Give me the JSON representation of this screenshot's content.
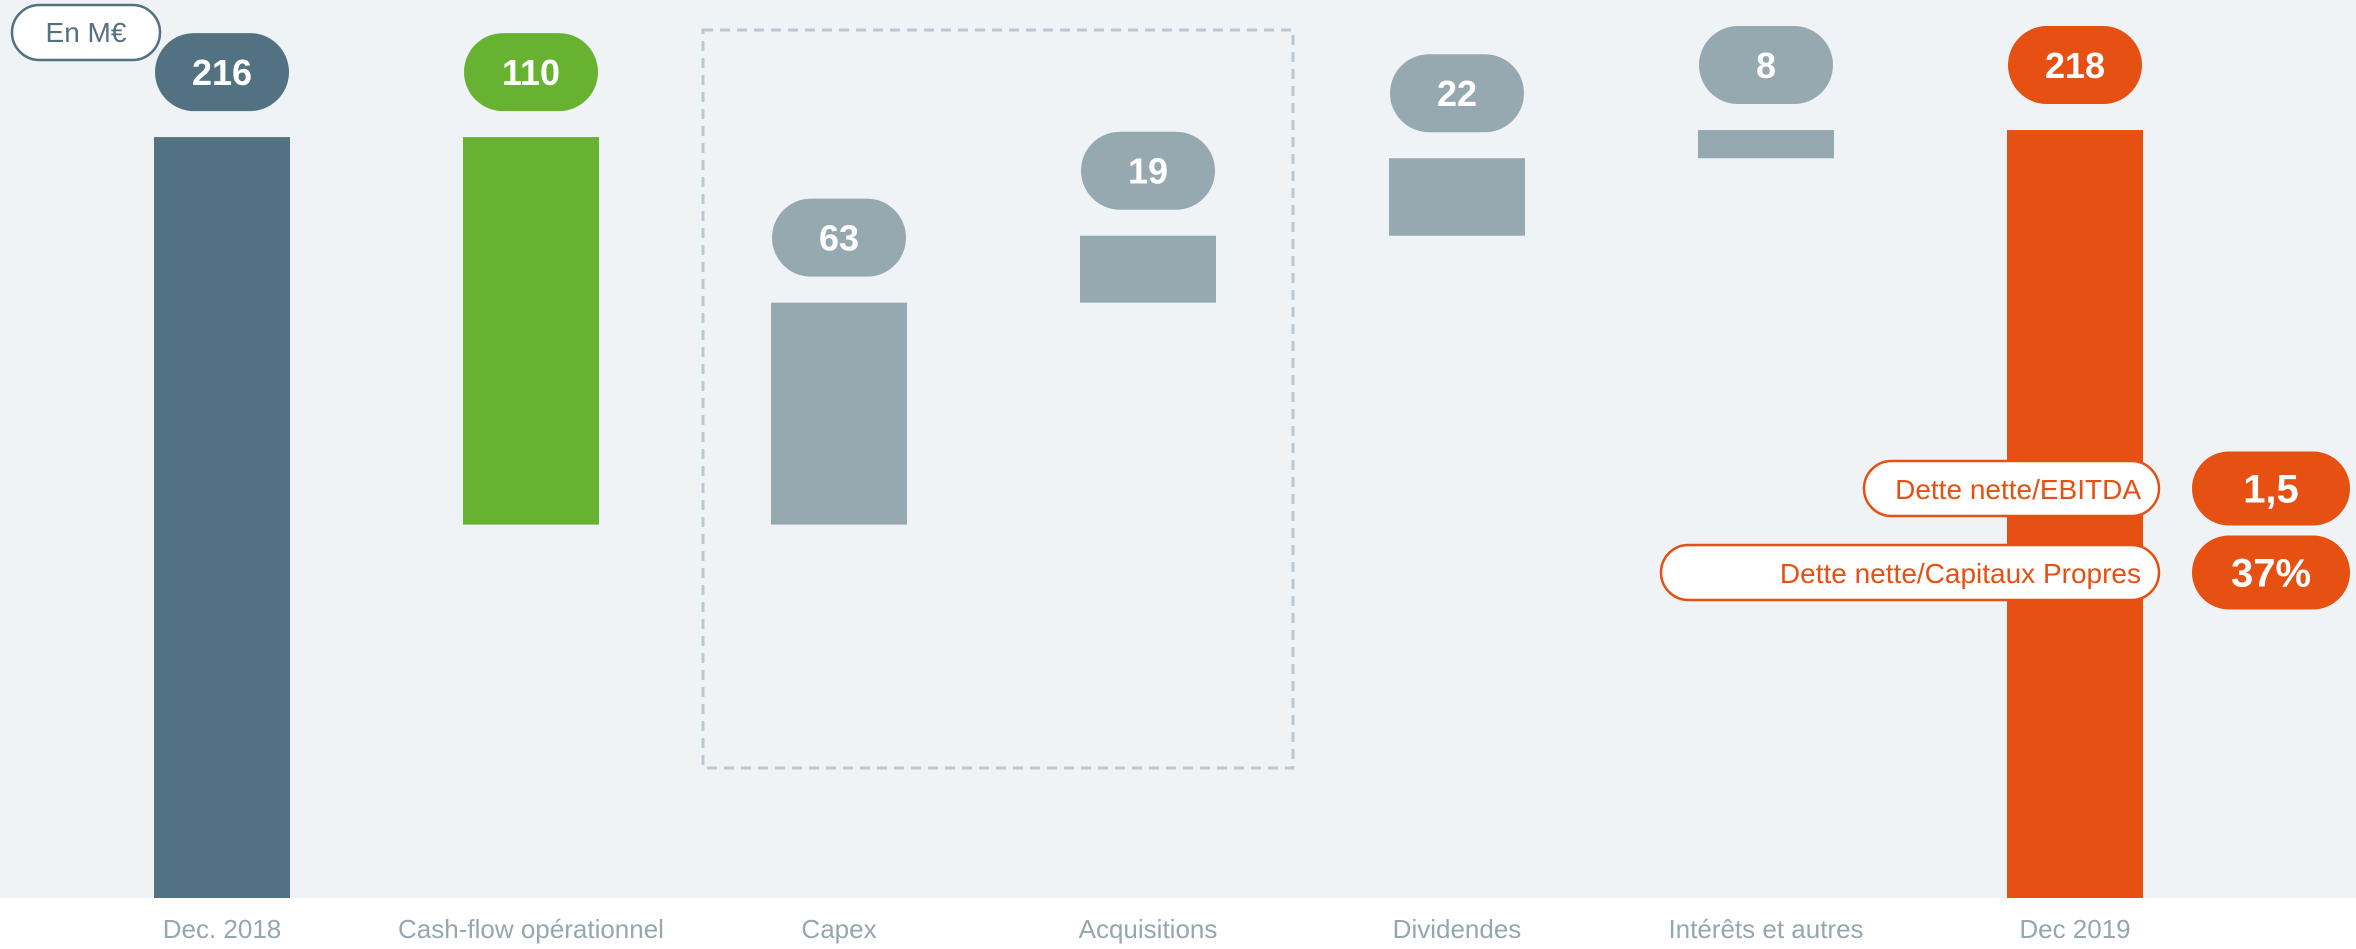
{
  "chart_data": {
    "type": "bar",
    "unit_label": "En M€",
    "categories": [
      "Dec. 2018",
      "Cash-flow opérationnel",
      "Capex",
      "Acquisitions",
      "Dividendes",
      "Intérêts et autres",
      "Dec 2019"
    ],
    "values": [
      216,
      110,
      63,
      19,
      22,
      8,
      218
    ],
    "value_labels": [
      "216",
      "110",
      "63",
      "19",
      "22",
      "8",
      "218"
    ],
    "bar_roles": [
      "total",
      "increase",
      "decrease",
      "decrease",
      "decrease",
      "decrease",
      "total"
    ],
    "bar_ranges": [
      [
        0,
        216
      ],
      [
        106,
        216
      ],
      [
        106,
        169
      ],
      [
        169,
        188
      ],
      [
        188,
        210
      ],
      [
        210,
        218
      ],
      [
        0,
        218
      ]
    ],
    "ylim": [
      0,
      220
    ],
    "grouped_categories": [
      "Capex",
      "Acquisitions"
    ],
    "ratios": [
      {
        "label": "Dette nette/EBITDA",
        "value": "1,5"
      },
      {
        "label": "Dette nette/Capitaux Propres",
        "value": "37%"
      }
    ],
    "colors": {
      "total_start": "#527282",
      "increase": "#67B231",
      "decrease": "#97A9B0",
      "total_end": "#E65012",
      "background": "#EFF3F6",
      "label_text": "#95A7AF",
      "group_border": "#B9C9D1"
    }
  }
}
